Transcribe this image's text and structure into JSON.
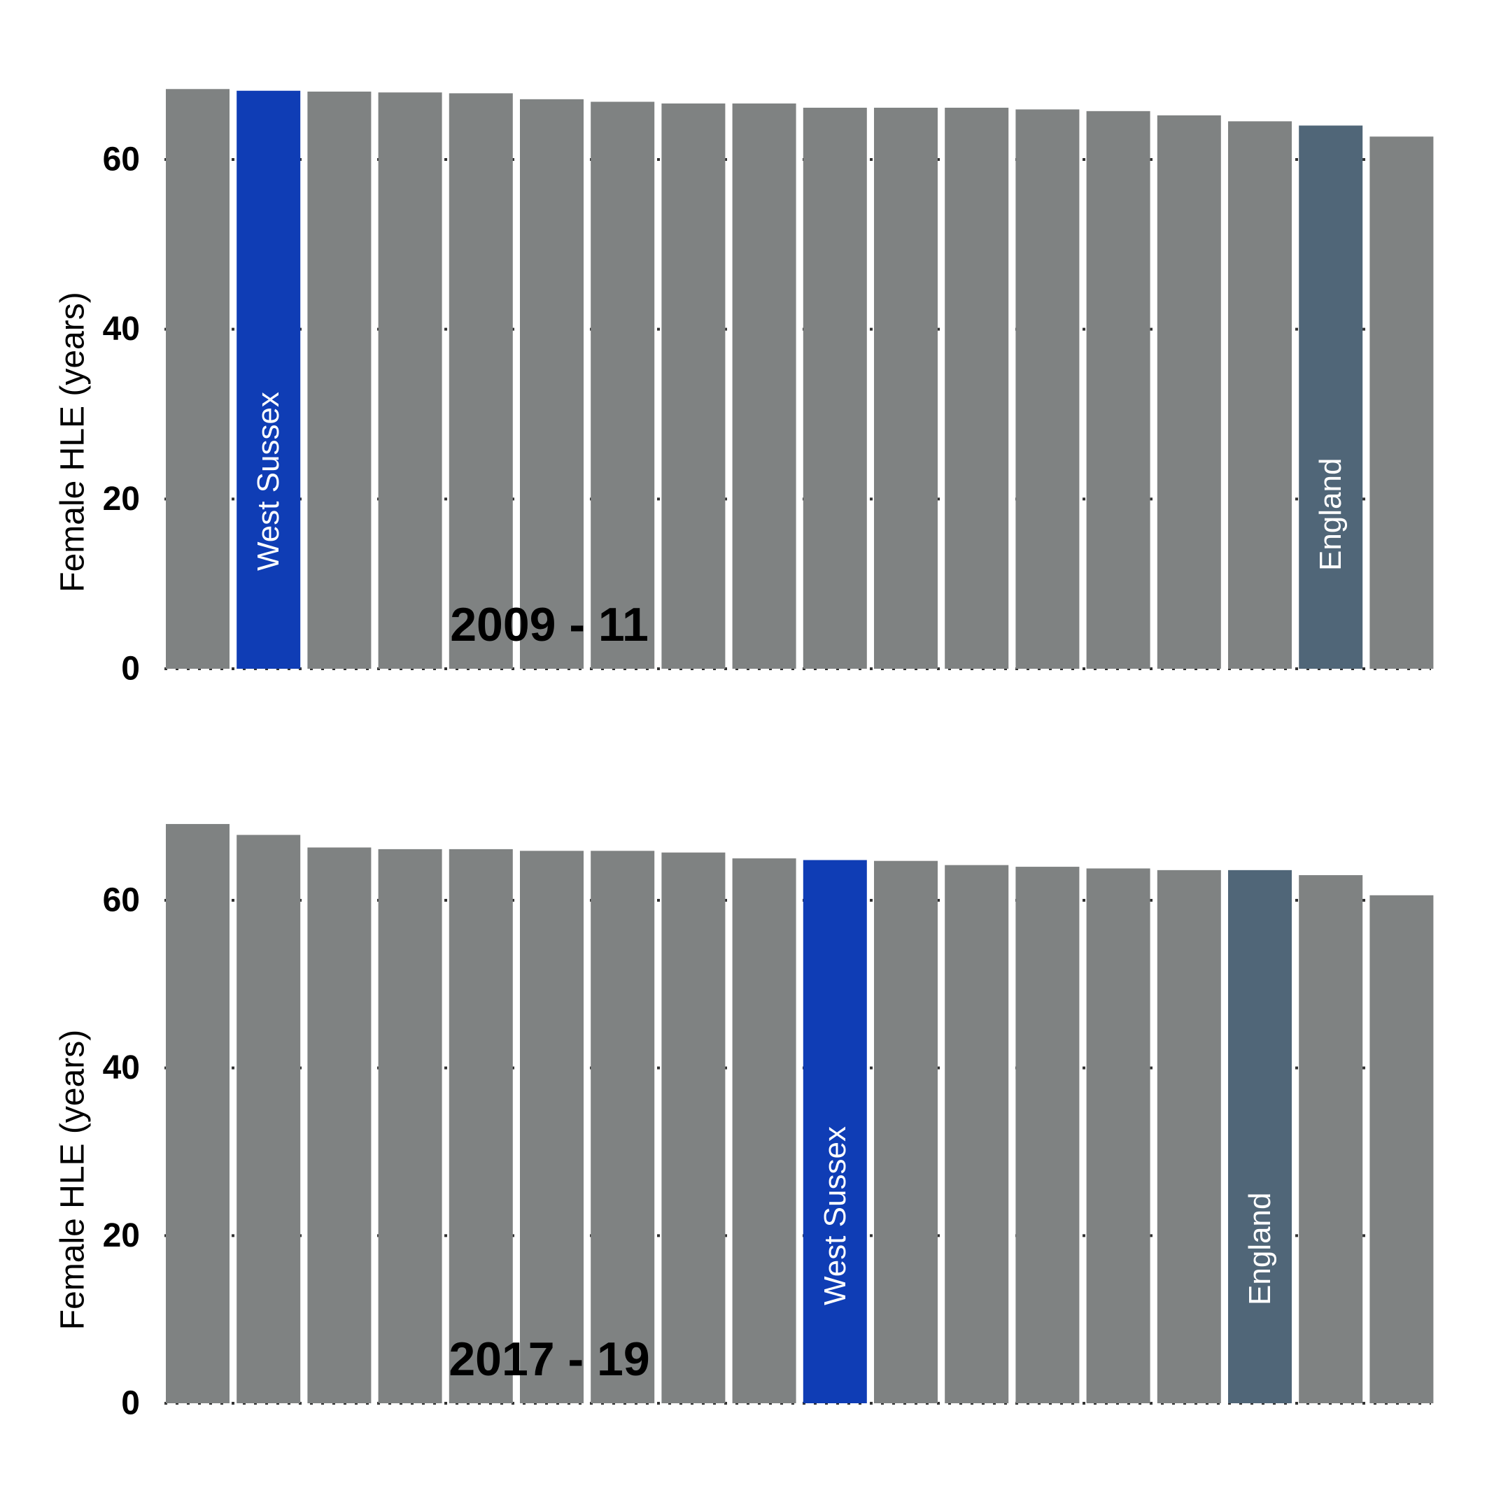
{
  "colors": {
    "default_bar": "#7f8282",
    "highlight_bar": "#0f3db5",
    "england_bar": "#506678",
    "gridline": "#333333",
    "background": "#ffffff"
  },
  "chart_data": [
    {
      "type": "bar",
      "title": "",
      "period_label": "2009 - 11",
      "xlabel": "",
      "ylabel": "Female HLE (years)",
      "ylim": [
        0,
        70
      ],
      "yticks": [
        0,
        20,
        40,
        60
      ],
      "grid": "horizontal dotted",
      "legend": "none",
      "values": [
        68.3,
        68.1,
        68.0,
        67.9,
        67.8,
        67.1,
        66.8,
        66.6,
        66.6,
        66.1,
        66.1,
        66.1,
        65.9,
        65.7,
        65.2,
        64.5,
        64.0,
        62.7
      ],
      "bar_labels": [
        "",
        "West Sussex",
        "",
        "",
        "",
        "",
        "",
        "",
        "",
        "",
        "",
        "",
        "",
        "",
        "",
        "",
        "England",
        ""
      ],
      "highlight_index": 1,
      "england_index": 16
    },
    {
      "type": "bar",
      "title": "",
      "period_label": "2017 - 19",
      "xlabel": "",
      "ylabel": "Female HLE (years)",
      "ylim": [
        0,
        70
      ],
      "yticks": [
        0,
        20,
        40,
        60
      ],
      "grid": "horizontal dotted",
      "legend": "none",
      "values": [
        69.1,
        67.8,
        66.3,
        66.1,
        66.1,
        65.9,
        65.9,
        65.7,
        65.0,
        64.8,
        64.7,
        64.2,
        64.0,
        63.8,
        63.6,
        63.6,
        63.0,
        60.6
      ],
      "bar_labels": [
        "",
        "",
        "",
        "",
        "",
        "",
        "",
        "",
        "",
        "West Sussex",
        "",
        "",
        "",
        "",
        "",
        "England",
        "",
        ""
      ],
      "highlight_index": 9,
      "england_index": 15
    }
  ]
}
